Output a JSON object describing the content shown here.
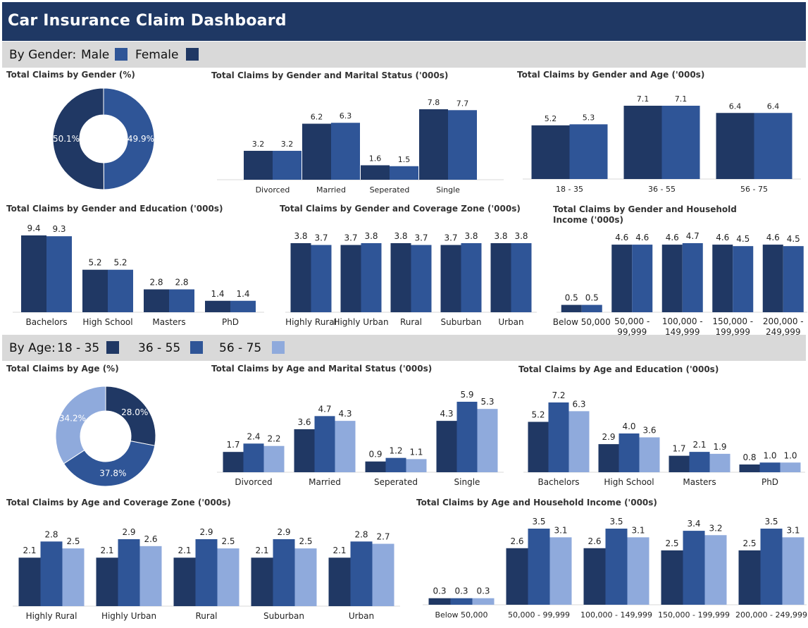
{
  "header": {
    "title": "Car Insurance Claim Dashboard"
  },
  "colors": {
    "header": "#1f3864",
    "s1": "#203864",
    "s2": "#2f5597",
    "s3": "#8faadc",
    "band": "#d9d9d9"
  },
  "gender_band": {
    "label": "By Gender:",
    "items": [
      {
        "name": "Male",
        "color": "#2f5597"
      },
      {
        "name": "Female",
        "color": "#203864"
      }
    ]
  },
  "age_band": {
    "label": "By Age:",
    "items": [
      {
        "name": "18 - 35",
        "color": "#203864"
      },
      {
        "name": "36 - 55",
        "color": "#2f5597"
      },
      {
        "name": "56 - 75",
        "color": "#8faadc"
      }
    ]
  },
  "chart_data": [
    {
      "id": "g_pie",
      "type": "pie",
      "title": "Total Claims by Gender (%)",
      "slices": [
        {
          "label": "Male",
          "value": 49.9,
          "text": "49.9%",
          "color": "#2f5597"
        },
        {
          "label": "Female",
          "value": 50.1,
          "text": "50.1%",
          "color": "#203864"
        }
      ]
    },
    {
      "id": "g_marital",
      "type": "bar",
      "title": "Total Claims by Gender and Marital Status ('000s)",
      "categories": [
        "Divorced",
        "Married",
        "Seperated",
        "Single"
      ],
      "series": [
        {
          "name": "Female",
          "color": "#203864",
          "values": [
            3.2,
            6.2,
            1.6,
            7.8
          ]
        },
        {
          "name": "Male",
          "color": "#2f5597",
          "values": [
            3.2,
            6.3,
            1.5,
            7.7
          ]
        }
      ]
    },
    {
      "id": "g_age",
      "type": "bar",
      "title": "Total Claims by Gender and Age ('000s)",
      "categories": [
        "18 - 35",
        "36 - 55",
        "56 - 75"
      ],
      "series": [
        {
          "name": "Female",
          "color": "#203864",
          "values": [
            5.2,
            7.1,
            6.4
          ]
        },
        {
          "name": "Male",
          "color": "#2f5597",
          "values": [
            5.3,
            7.1,
            6.4
          ]
        }
      ]
    },
    {
      "id": "g_edu",
      "type": "bar",
      "title": "Total Claims by Gender and Education ('000s)",
      "categories": [
        "Bachelors",
        "High School",
        "Masters",
        "PhD"
      ],
      "series": [
        {
          "name": "Female",
          "color": "#203864",
          "values": [
            9.4,
            5.2,
            2.8,
            1.4
          ]
        },
        {
          "name": "Male",
          "color": "#2f5597",
          "values": [
            9.3,
            5.2,
            2.8,
            1.4
          ]
        }
      ]
    },
    {
      "id": "g_zone",
      "type": "bar",
      "title": "Total Claims by Gender and Coverage Zone ('000s)",
      "categories": [
        "Highly Rural",
        "Highly Urban",
        "Rural",
        "Suburban",
        "Urban"
      ],
      "series": [
        {
          "name": "Female",
          "color": "#203864",
          "values": [
            3.8,
            3.7,
            3.8,
            3.7,
            3.8
          ]
        },
        {
          "name": "Male",
          "color": "#2f5597",
          "values": [
            3.7,
            3.8,
            3.7,
            3.8,
            3.8
          ]
        }
      ]
    },
    {
      "id": "g_income",
      "type": "bar",
      "title": "Total Claims by Gender and Household Income ('000s)",
      "categories": [
        "Below 50,000",
        "50,000 - 99,999",
        "100,000 - 149,999",
        "150,000 - 199,999",
        "200,000 - 249,999"
      ],
      "series": [
        {
          "name": "Female",
          "color": "#203864",
          "values": [
            0.5,
            4.6,
            4.6,
            4.6,
            4.6
          ]
        },
        {
          "name": "Male",
          "color": "#2f5597",
          "values": [
            0.5,
            4.6,
            4.7,
            4.5,
            4.5
          ]
        }
      ]
    },
    {
      "id": "a_pie",
      "type": "pie",
      "title": "Total Claims by Age (%)",
      "slices": [
        {
          "label": "18 - 35",
          "value": 28.0,
          "text": "28.0%",
          "color": "#203864"
        },
        {
          "label": "36 - 55",
          "value": 37.8,
          "text": "37.8%",
          "color": "#2f5597"
        },
        {
          "label": "56 - 75",
          "value": 34.2,
          "text": "34.2%",
          "color": "#8faadc"
        }
      ]
    },
    {
      "id": "a_marital",
      "type": "bar",
      "title": "Total Claims by Age and Marital Status ('000s)",
      "categories": [
        "Divorced",
        "Married",
        "Seperated",
        "Single"
      ],
      "series": [
        {
          "name": "18 - 35",
          "color": "#203864",
          "values": [
            1.7,
            3.6,
            0.9,
            4.3
          ]
        },
        {
          "name": "36 - 55",
          "color": "#2f5597",
          "values": [
            2.4,
            4.7,
            1.2,
            5.9
          ]
        },
        {
          "name": "56 - 75",
          "color": "#8faadc",
          "values": [
            2.2,
            4.3,
            1.1,
            5.3
          ]
        }
      ]
    },
    {
      "id": "a_edu",
      "type": "bar",
      "title": "Total Claims by Age and Education ('000s)",
      "categories": [
        "Bachelors",
        "High School",
        "Masters",
        "PhD"
      ],
      "series": [
        {
          "name": "18 - 35",
          "color": "#203864",
          "values": [
            5.2,
            2.9,
            1.7,
            0.8
          ]
        },
        {
          "name": "36 - 55",
          "color": "#2f5597",
          "values": [
            7.2,
            4.0,
            2.1,
            1.0
          ]
        },
        {
          "name": "56 - 75",
          "color": "#8faadc",
          "values": [
            6.3,
            3.6,
            1.9,
            1.0
          ]
        }
      ]
    },
    {
      "id": "a_zone",
      "type": "bar",
      "title": "Total Claims by Age and Coverage Zone ('000s)",
      "categories": [
        "Highly Rural",
        "Highly Urban",
        "Rural",
        "Suburban",
        "Urban"
      ],
      "series": [
        {
          "name": "18 - 35",
          "color": "#203864",
          "values": [
            2.1,
            2.1,
            2.1,
            2.1,
            2.1
          ]
        },
        {
          "name": "36 - 55",
          "color": "#2f5597",
          "values": [
            2.8,
            2.9,
            2.9,
            2.9,
            2.8
          ]
        },
        {
          "name": "56 - 75",
          "color": "#8faadc",
          "values": [
            2.5,
            2.6,
            2.5,
            2.5,
            2.7
          ]
        }
      ]
    },
    {
      "id": "a_income",
      "type": "bar",
      "title": "Total Claims by Age and Household Income ('000s)",
      "categories": [
        "Below 50,000",
        "50,000 - 99,999",
        "100,000 - 149,999",
        "150,000 - 199,999",
        "200,000 - 249,999"
      ],
      "series": [
        {
          "name": "18 - 35",
          "color": "#203864",
          "values": [
            0.3,
            2.6,
            2.6,
            2.5,
            2.5
          ]
        },
        {
          "name": "36 - 55",
          "color": "#2f5597",
          "values": [
            0.3,
            3.5,
            3.5,
            3.4,
            3.5
          ]
        },
        {
          "name": "56 - 75",
          "color": "#8faadc",
          "values": [
            0.3,
            3.1,
            3.1,
            3.2,
            3.1
          ]
        }
      ]
    }
  ]
}
